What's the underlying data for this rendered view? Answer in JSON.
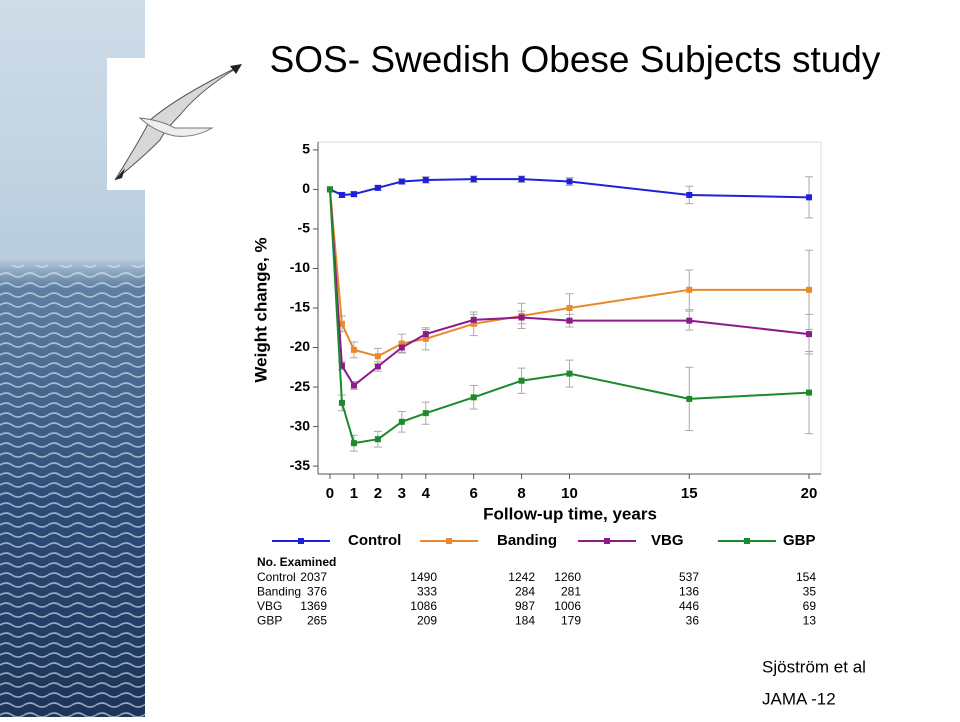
{
  "slide": {
    "title": "SOS- Swedish Obese Subjects study",
    "citation": [
      "Sjöström et al",
      "JAMA -12"
    ]
  },
  "chart_data": {
    "type": "line",
    "ylabel": "Weight change, %",
    "xlabel": "Follow-up time, years",
    "xlim": [
      -0.5,
      20.5
    ],
    "ylim": [
      -36,
      6
    ],
    "xticks": [
      0,
      1,
      2,
      3,
      4,
      6,
      8,
      10,
      15,
      20
    ],
    "yticks": [
      5,
      0,
      -5,
      -10,
      -15,
      -20,
      -25,
      -30,
      -35
    ],
    "grid": false,
    "x": [
      0,
      0.5,
      1,
      2,
      3,
      4,
      6,
      8,
      10,
      15,
      20
    ],
    "series": [
      {
        "name": "Control",
        "color": "#2020d8",
        "values": [
          0,
          -0.7,
          -0.6,
          0.2,
          1,
          1.2,
          1.3,
          1.3,
          1,
          -0.7,
          -1
        ],
        "errors": [
          0,
          0.3,
          0.3,
          0.3,
          0.3,
          0.4,
          0.4,
          0.4,
          0.5,
          1.1,
          2.6
        ]
      },
      {
        "name": "Banding",
        "color": "#e8892b",
        "values": [
          0,
          -17,
          -20.3,
          -21.1,
          -19.5,
          -18.9,
          -17,
          -16,
          -15,
          -12.7,
          -12.7
        ],
        "errors": [
          0,
          1,
          1,
          1,
          1.2,
          1.4,
          1.5,
          1.6,
          1.8,
          2.5,
          5
        ]
      },
      {
        "name": "VBG",
        "color": "#8b1a8b",
        "values": [
          0,
          -22.3,
          -24.8,
          -22.4,
          -20,
          -18.3,
          -16.5,
          -16.2,
          -16.6,
          -16.6,
          -18.3
        ],
        "errors": [
          0,
          0.5,
          0.5,
          0.6,
          0.6,
          0.6,
          0.7,
          0.8,
          0.8,
          1.2,
          2.5
        ]
      },
      {
        "name": "GBP",
        "color": "#1a8a2a",
        "values": [
          0,
          -27,
          -32.1,
          -31.6,
          -29.4,
          -28.3,
          -26.3,
          -24.2,
          -23.3,
          -26.5,
          -25.7
        ],
        "errors": [
          0,
          1,
          1,
          1,
          1.3,
          1.4,
          1.5,
          1.6,
          1.7,
          4,
          5.2
        ]
      }
    ],
    "table": {
      "title": "No. Examined",
      "rows": [
        [
          "Control",
          "2037",
          "1490",
          "1242",
          "1260",
          "537",
          "154"
        ],
        [
          "Banding",
          "376",
          "333",
          "284",
          "281",
          "136",
          "35"
        ],
        [
          "VBG",
          "1369",
          "1086",
          "987",
          "1006",
          "446",
          "69"
        ],
        [
          "GBP",
          "265",
          "209",
          "184",
          "179",
          "36",
          "13"
        ]
      ]
    }
  }
}
